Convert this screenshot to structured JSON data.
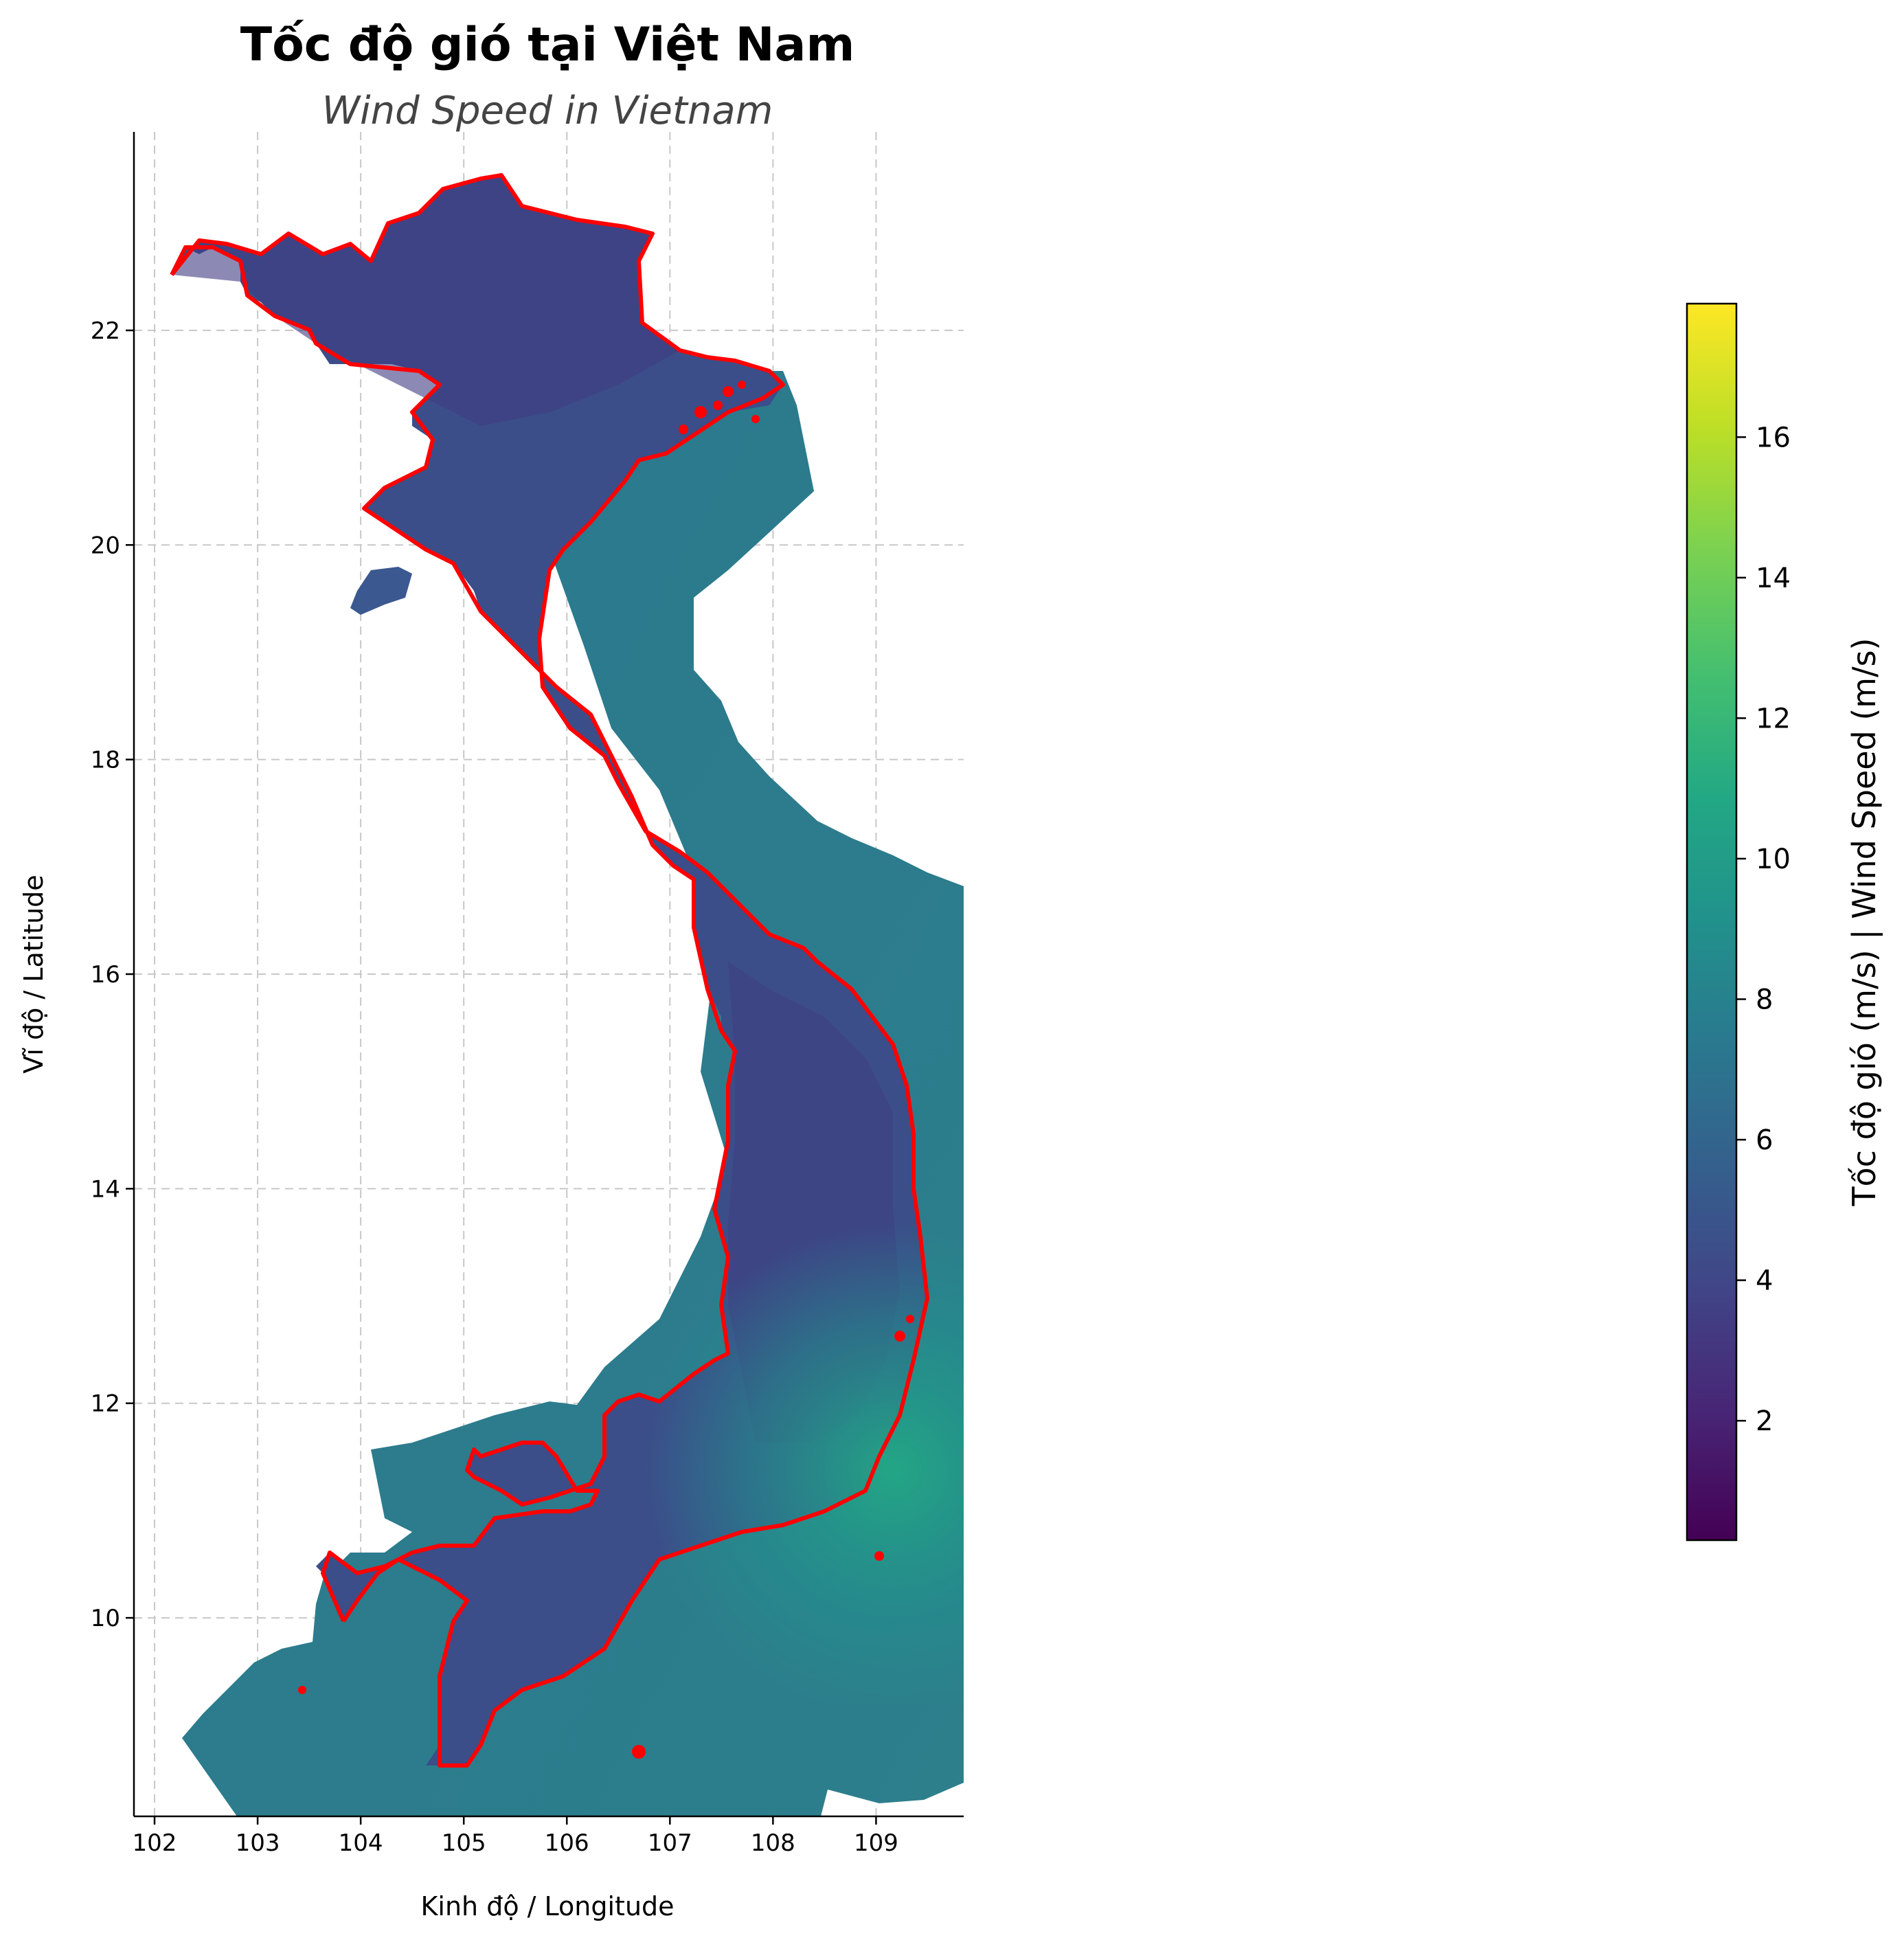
{
  "title": "Tốc độ gió tại Việt Nam",
  "subtitle": "Wind Speed in Vietnam",
  "map": {
    "x_label": "Kinh độ / Longitude",
    "y_label": "Vĩ độ / Latitude",
    "x_ticks": [
      "102",
      "103",
      "104",
      "105",
      "106",
      "107",
      "108",
      "109"
    ],
    "y_ticks": [
      "22",
      "20",
      "18",
      "16",
      "14",
      "12",
      "10"
    ],
    "x_range": [
      101.8,
      109.85
    ],
    "y_range": [
      8.15,
      23.85
    ],
    "grid": true,
    "border_color": "#ff0000"
  },
  "colorbar": {
    "label": "Tốc độ gió (m/s) | Wind Speed (m/s)",
    "ticks": [
      "2",
      "4",
      "6",
      "8",
      "10",
      "12",
      "14",
      "16"
    ],
    "range": [
      0.3,
      17.9
    ],
    "colormap": "viridis",
    "colors": [
      "#440154",
      "#3b528b",
      "#21918c",
      "#5ec962",
      "#fde725"
    ]
  }
}
